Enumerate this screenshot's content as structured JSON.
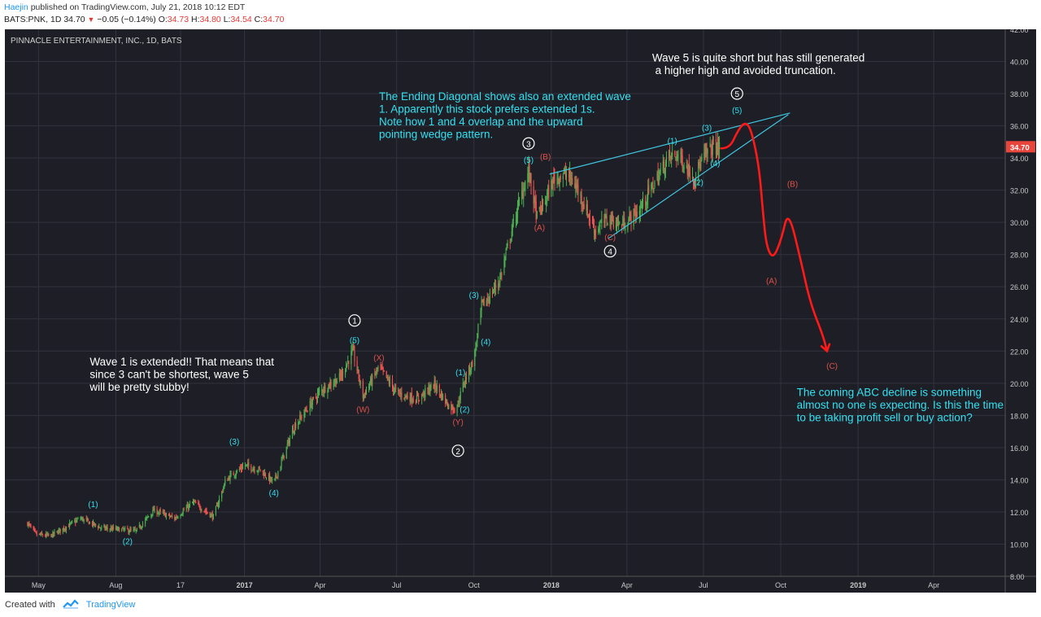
{
  "header": {
    "author": "Haejin",
    "published": "published on TradingView.com, July 21, 2018 10:12 EDT",
    "symbol": "BATS:PNK, 1D",
    "last": "34.70",
    "change": "−0.05 (−0.14%)",
    "o_label": "O:",
    "o_value": "34.73",
    "h_label": "H:",
    "h_value": "34.80",
    "l_label": "L:",
    "l_value": "34.54",
    "c_label": "C:",
    "c_value": "34.70"
  },
  "footer": {
    "created_with": "Created with",
    "brand": "TradingView",
    "logo_icon": "tradingview-logo-icon"
  },
  "colors": {
    "background": "#1e1e26",
    "grid": "#33333f",
    "up": "#4caf50",
    "down": "#ef5350",
    "cyan": "#34e0f0",
    "red_label": "#e0524a",
    "projection": "#ff1a1a",
    "trendline": "#3fc6e0",
    "white": "#ffffff",
    "price_badge": "#e8453c"
  },
  "chart_data": {
    "type": "candlestick",
    "title": "PINNACLE ENTERTAINMENT, INC., 1D, BATS",
    "x_labels": [
      "May",
      "Aug",
      "17",
      "2017",
      "Apr",
      "Jul",
      "Oct",
      "2018",
      "Apr",
      "Jul",
      "Oct",
      "2019",
      "Apr"
    ],
    "x_label_dates": [
      "2016-05-01",
      "2016-08-01",
      "2016-10-17",
      "2017-01-01",
      "2017-04-01",
      "2017-07-01",
      "2017-10-01",
      "2018-01-01",
      "2018-04-01",
      "2018-07-01",
      "2018-10-01",
      "2019-01-01",
      "2019-04-01"
    ],
    "x_range": [
      "2016-03-22",
      "2019-06-25"
    ],
    "y_ticks": [
      "8.00",
      "10.00",
      "12.00",
      "14.00",
      "16.00",
      "18.00",
      "20.00",
      "22.00",
      "24.00",
      "26.00",
      "28.00",
      "30.00",
      "32.00",
      "34.00",
      "36.00",
      "38.00",
      "40.00",
      "42.00"
    ],
    "ylim": [
      8,
      42
    ],
    "last_price": "34.70",
    "price_path": [
      [
        "2016-04-18",
        11.3
      ],
      [
        "2016-04-28",
        10.6
      ],
      [
        "2016-05-15",
        10.5
      ],
      [
        "2016-06-20",
        11.6
      ],
      [
        "2016-07-15",
        11.0
      ],
      [
        "2016-08-08",
        10.9
      ],
      [
        "2016-08-25",
        10.8
      ],
      [
        "2016-09-15",
        12.1
      ],
      [
        "2016-10-10",
        11.6
      ],
      [
        "2016-11-01",
        12.6
      ],
      [
        "2016-11-25",
        11.7
      ],
      [
        "2016-12-10",
        14.0
      ],
      [
        "2017-01-01",
        14.9
      ],
      [
        "2017-01-20",
        14.6
      ],
      [
        "2017-02-05",
        13.8
      ],
      [
        "2017-03-01",
        17.3
      ],
      [
        "2017-04-01",
        19.5
      ],
      [
        "2017-04-25",
        20.4
      ],
      [
        "2017-05-10",
        22.0
      ],
      [
        "2017-05-22",
        19.2
      ],
      [
        "2017-06-10",
        21.0
      ],
      [
        "2017-07-01",
        19.4
      ],
      [
        "2017-07-25",
        19.0
      ],
      [
        "2017-08-15",
        19.9
      ],
      [
        "2017-09-01",
        18.6
      ],
      [
        "2017-09-10",
        18.4
      ],
      [
        "2017-09-20",
        20.2
      ],
      [
        "2017-10-01",
        21.5
      ],
      [
        "2017-10-10",
        24.8
      ],
      [
        "2017-10-20",
        25.4
      ],
      [
        "2017-11-01",
        26.5
      ],
      [
        "2017-11-15",
        29.5
      ],
      [
        "2017-11-28",
        32.0
      ],
      [
        "2017-12-05",
        33.2
      ],
      [
        "2017-12-15",
        30.3
      ],
      [
        "2017-12-25",
        31.4
      ],
      [
        "2018-01-05",
        32.8
      ],
      [
        "2018-01-20",
        33.0
      ],
      [
        "2018-02-01",
        32.1
      ],
      [
        "2018-02-10",
        31.0
      ],
      [
        "2018-02-22",
        29.5
      ],
      [
        "2018-03-10",
        30.3
      ],
      [
        "2018-03-25",
        29.8
      ],
      [
        "2018-04-15",
        30.7
      ],
      [
        "2018-05-01",
        32.2
      ],
      [
        "2018-05-20",
        34.0
      ],
      [
        "2018-06-01",
        34.2
      ],
      [
        "2018-06-10",
        33.5
      ],
      [
        "2018-06-20",
        32.8
      ],
      [
        "2018-07-01",
        34.0
      ],
      [
        "2018-07-12",
        34.7
      ],
      [
        "2018-07-20",
        34.7
      ]
    ],
    "wedge_lines": [
      {
        "from": [
          "2017-12-30",
          33.0
        ],
        "to": [
          "2018-10-12",
          36.8
        ]
      },
      {
        "from": [
          "2018-03-10",
          29.0
        ],
        "to": [
          "2018-10-10",
          36.7
        ]
      }
    ],
    "projection_path": [
      [
        "2018-07-22",
        34.6
      ],
      [
        "2018-08-01",
        34.6
      ],
      [
        "2018-08-10",
        35.6
      ],
      [
        "2018-08-18",
        36.2
      ],
      [
        "2018-08-25",
        36.0
      ],
      [
        "2018-09-01",
        34.6
      ],
      [
        "2018-09-06",
        33.0
      ],
      [
        "2018-09-10",
        30.5
      ],
      [
        "2018-09-14",
        28.5
      ],
      [
        "2018-09-22",
        27.7
      ],
      [
        "2018-10-02",
        29.0
      ],
      [
        "2018-10-10",
        30.8
      ],
      [
        "2018-10-25",
        27.6
      ],
      [
        "2018-11-05",
        25.0
      ],
      [
        "2018-11-20",
        23.0
      ],
      [
        "2018-11-25",
        22.0
      ]
    ],
    "wave_labels": [
      {
        "text": "(1)",
        "x": "2016-07-05",
        "y": 12.3,
        "color": "cyan",
        "circled": false
      },
      {
        "text": "(2)",
        "x": "2016-08-15",
        "y": 10.0,
        "color": "cyan",
        "circled": false
      },
      {
        "text": "(3)",
        "x": "2016-12-20",
        "y": 16.2,
        "color": "cyan",
        "circled": false
      },
      {
        "text": "(4)",
        "x": "2017-02-05",
        "y": 13.0,
        "color": "cyan",
        "circled": false
      },
      {
        "text": "1",
        "x": "2017-05-12",
        "y": 23.7,
        "color": "white",
        "circled": true
      },
      {
        "text": "(5)",
        "x": "2017-05-12",
        "y": 22.5,
        "color": "cyan",
        "circled": false
      },
      {
        "text": "(W)",
        "x": "2017-05-22",
        "y": 18.2,
        "color": "red",
        "circled": false
      },
      {
        "text": "(X)",
        "x": "2017-06-10",
        "y": 21.4,
        "color": "red",
        "circled": false
      },
      {
        "text": "(1)",
        "x": "2017-09-15",
        "y": 20.5,
        "color": "cyan",
        "circled": false
      },
      {
        "text": "(2)",
        "x": "2017-09-20",
        "y": 18.2,
        "color": "cyan",
        "circled": false
      },
      {
        "text": "(Y)",
        "x": "2017-09-12",
        "y": 17.4,
        "color": "red",
        "circled": false
      },
      {
        "text": "2",
        "x": "2017-09-12",
        "y": 15.6,
        "color": "white",
        "circled": true
      },
      {
        "text": "(3)",
        "x": "2017-10-01",
        "y": 25.3,
        "color": "cyan",
        "circled": false
      },
      {
        "text": "(4)",
        "x": "2017-10-15",
        "y": 22.4,
        "color": "cyan",
        "circled": false
      },
      {
        "text": "3",
        "x": "2017-12-05",
        "y": 34.7,
        "color": "white",
        "circled": true
      },
      {
        "text": "(5)",
        "x": "2017-12-05",
        "y": 33.7,
        "color": "cyan",
        "circled": false
      },
      {
        "text": "(B)",
        "x": "2017-12-25",
        "y": 33.9,
        "color": "red",
        "circled": false
      },
      {
        "text": "(A)",
        "x": "2017-12-18",
        "y": 29.5,
        "color": "red",
        "circled": false
      },
      {
        "text": "(C)",
        "x": "2018-03-12",
        "y": 28.9,
        "color": "red",
        "circled": false
      },
      {
        "text": "4",
        "x": "2018-03-12",
        "y": 28.0,
        "color": "white",
        "circled": true
      },
      {
        "text": "(1)",
        "x": "2018-05-25",
        "y": 34.9,
        "color": "cyan",
        "circled": false
      },
      {
        "text": "(2)",
        "x": "2018-06-25",
        "y": 32.3,
        "color": "cyan",
        "circled": false
      },
      {
        "text": "(3)",
        "x": "2018-07-05",
        "y": 35.7,
        "color": "cyan",
        "circled": false
      },
      {
        "text": "(4)",
        "x": "2018-07-15",
        "y": 33.5,
        "color": "cyan",
        "circled": false
      },
      {
        "text": "5",
        "x": "2018-08-10",
        "y": 37.8,
        "color": "white",
        "circled": true
      },
      {
        "text": "(5)",
        "x": "2018-08-10",
        "y": 36.8,
        "color": "cyan",
        "circled": false
      },
      {
        "text": "(B)",
        "x": "2018-10-15",
        "y": 32.2,
        "color": "red",
        "circled": false
      },
      {
        "text": "(A)",
        "x": "2018-09-20",
        "y": 26.2,
        "color": "red",
        "circled": false
      },
      {
        "text": "(C)",
        "x": "2018-12-01",
        "y": 20.9,
        "color": "red",
        "circled": false
      }
    ],
    "annotations": [
      {
        "lines": [
          "Wave 1 is extended!! That means that",
          "since 3 can't be shortest, wave 5",
          "will be pretty stubby!"
        ],
        "color": "white",
        "x": "2016-07-01",
        "y": 21.1
      },
      {
        "lines": [
          "The Ending Diagonal shows also an extended wave",
          "1. Apparently this stock prefers extended 1s.",
          "Note how 1 and 4 overlap and the upward",
          "pointing wedge pattern."
        ],
        "color": "cyan",
        "x": "2017-06-10",
        "y": 37.6
      },
      {
        "lines": [
          "Wave 5 is quite short but has still generated",
          " a higher high and avoided truncation."
        ],
        "color": "white",
        "x": "2018-05-01",
        "y": 40.0
      },
      {
        "lines": [
          "The coming ABC decline is something",
          "almost no one is expecting. Is this the time",
          "to be taking profit sell or buy action?"
        ],
        "color": "cyan",
        "x": "2018-10-20",
        "y": 19.2
      }
    ]
  }
}
